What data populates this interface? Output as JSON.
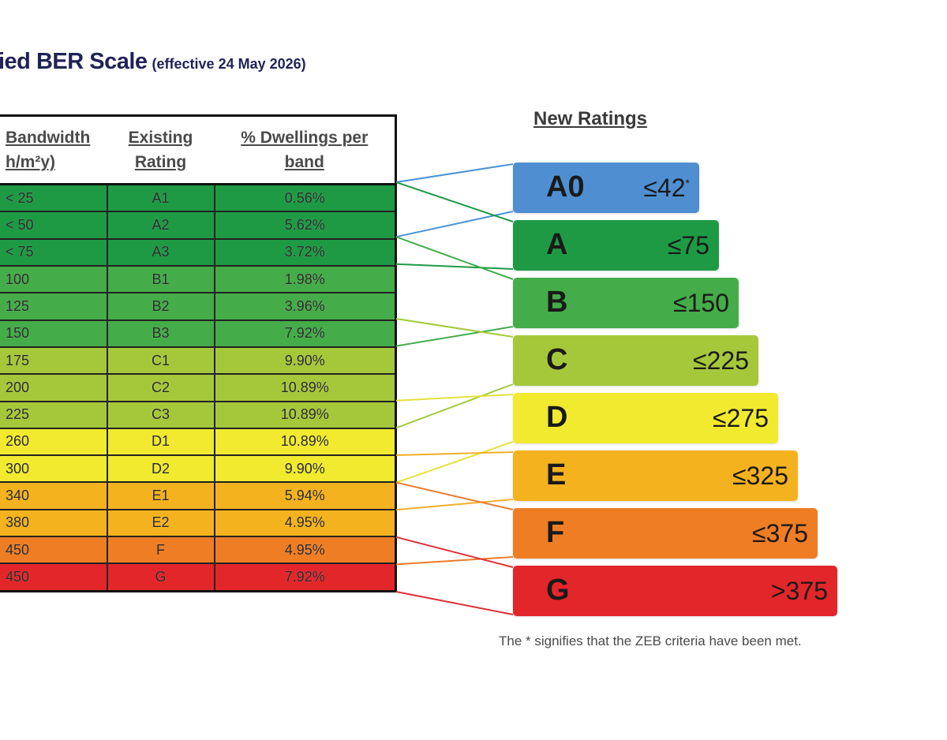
{
  "title": {
    "main": "ied BER  Scale",
    "sub": "(effective 24 May 2026)"
  },
  "table": {
    "headers": [
      {
        "line1": "Bandwidth",
        "line2": "h/m²y)"
      },
      {
        "line1": "Existing",
        "line2": "Rating"
      },
      {
        "line1": "% Dwellings per",
        "line2": "band"
      }
    ],
    "rows": [
      {
        "bandwidth": "< 25",
        "rating": "A1",
        "pct": "0.56%",
        "color": "#1e9a45"
      },
      {
        "bandwidth": "< 50",
        "rating": "A2",
        "pct": "5.62%",
        "color": "#1e9a45"
      },
      {
        "bandwidth": "< 75",
        "rating": "A3",
        "pct": "3.72%",
        "color": "#1e9a45"
      },
      {
        "bandwidth": "100",
        "rating": "B1",
        "pct": "1.98%",
        "color": "#44ac48"
      },
      {
        "bandwidth": "125",
        "rating": "B2",
        "pct": "3.96%",
        "color": "#44ac48"
      },
      {
        "bandwidth": "150",
        "rating": "B3",
        "pct": "7.92%",
        "color": "#44ac48"
      },
      {
        "bandwidth": "175",
        "rating": "C1",
        "pct": "9.90%",
        "color": "#a5c83b"
      },
      {
        "bandwidth": "200",
        "rating": "C2",
        "pct": "10.89%",
        "color": "#a5c83b"
      },
      {
        "bandwidth": "225",
        "rating": "C3",
        "pct": "10.89%",
        "color": "#a5c83b"
      },
      {
        "bandwidth": "260",
        "rating": "D1",
        "pct": "10.89%",
        "color": "#f1ea2f"
      },
      {
        "bandwidth": "300",
        "rating": "D2",
        "pct": "9.90%",
        "color": "#f1ea2f"
      },
      {
        "bandwidth": "340",
        "rating": "E1",
        "pct": "5.94%",
        "color": "#f5b21f"
      },
      {
        "bandwidth": "380",
        "rating": "E2",
        "pct": "4.95%",
        "color": "#f5b21f"
      },
      {
        "bandwidth": "450",
        "rating": "F",
        "pct": "4.95%",
        "color": "#ee7d24"
      },
      {
        "bandwidth": "450",
        "rating": "G",
        "pct": "7.92%",
        "color": "#e3262a"
      }
    ]
  },
  "new_ratings": {
    "label": "New Ratings",
    "bars": [
      {
        "letter": "A0",
        "limit": "≤42",
        "star": "*",
        "color": "#4f8fd1",
        "line": "#4a94d6",
        "fromRows": [
          0,
          1
        ]
      },
      {
        "letter": "A",
        "limit": "≤75",
        "star": "",
        "color": "#1e9a45",
        "line": "#1e9a45",
        "fromRows": [
          0,
          2
        ]
      },
      {
        "letter": "B",
        "limit": "≤150",
        "star": "",
        "color": "#44ac48",
        "line": "#3fae4a",
        "fromRows": [
          2,
          5
        ]
      },
      {
        "letter": "C",
        "limit": "≤225",
        "star": "",
        "color": "#a5c83b",
        "line": "#a4ca3c",
        "fromRows": [
          5,
          8
        ]
      },
      {
        "letter": "D",
        "limit": "≤275",
        "star": "",
        "color": "#f1ea2f",
        "line": "#e7e03a",
        "fromRows": [
          8,
          10
        ]
      },
      {
        "letter": "E",
        "limit": "≤325",
        "star": "",
        "color": "#f5b21f",
        "line": "#f2ae2a",
        "fromRows": [
          10,
          11
        ]
      },
      {
        "letter": "F",
        "limit": "≤375",
        "star": "",
        "color": "#ee7d24",
        "line": "#ec7b2a",
        "fromRows": [
          11,
          13
        ]
      },
      {
        "letter": "G",
        "limit": ">375",
        "star": "",
        "color": "#e3262a",
        "line": "#de3036",
        "fromRows": [
          13,
          14
        ]
      }
    ]
  },
  "footnote": "The * signifies that the ZEB criteria have been met."
}
